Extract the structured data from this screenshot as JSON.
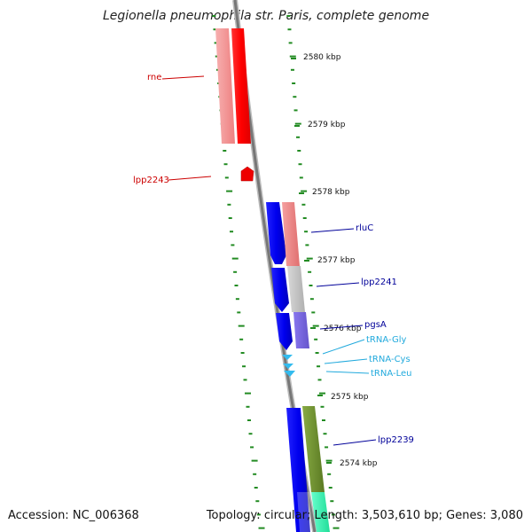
{
  "title": "Legionella pneumophila str. Paris, complete genome",
  "footer": {
    "accession_label": "Accession:",
    "accession": "NC_006368",
    "topology_label": "Topology:",
    "topology": "circular",
    "length_label": "Length:",
    "length": "3,503,610 bp",
    "genes_label": "Genes:",
    "genes": "3,080"
  },
  "scale": {
    "unit": "kbp",
    "ticks": [
      "2580 kbp",
      "2579 kbp",
      "2578 kbp",
      "2577 kbp",
      "2576 kbp",
      "2575 kbp",
      "2574 kbp"
    ]
  },
  "genes": [
    {
      "label": "rne",
      "strand": "reverse",
      "color": "#cc0000"
    },
    {
      "label": "lpp2243",
      "strand": "reverse",
      "color": "#cc0000"
    },
    {
      "label": "rluC",
      "strand": "forward",
      "color": "#000099"
    },
    {
      "label": "lpp2241",
      "strand": "forward",
      "color": "#000099"
    },
    {
      "label": "pgsA",
      "strand": "forward",
      "color": "#000099"
    },
    {
      "label": "tRNA-Gly",
      "strand": "forward",
      "color": "#22aadd"
    },
    {
      "label": "tRNA-Cys",
      "strand": "forward",
      "color": "#22aadd"
    },
    {
      "label": "tRNA-Leu",
      "strand": "forward",
      "color": "#22aadd"
    },
    {
      "label": "lpp2239",
      "strand": "forward",
      "color": "#000099"
    }
  ],
  "colors": {
    "backbone": "#808080",
    "tick": "#228b22",
    "reverse_gene": "#ff0000",
    "forward_gene": "#0000ee",
    "trna": "#33bbee"
  }
}
